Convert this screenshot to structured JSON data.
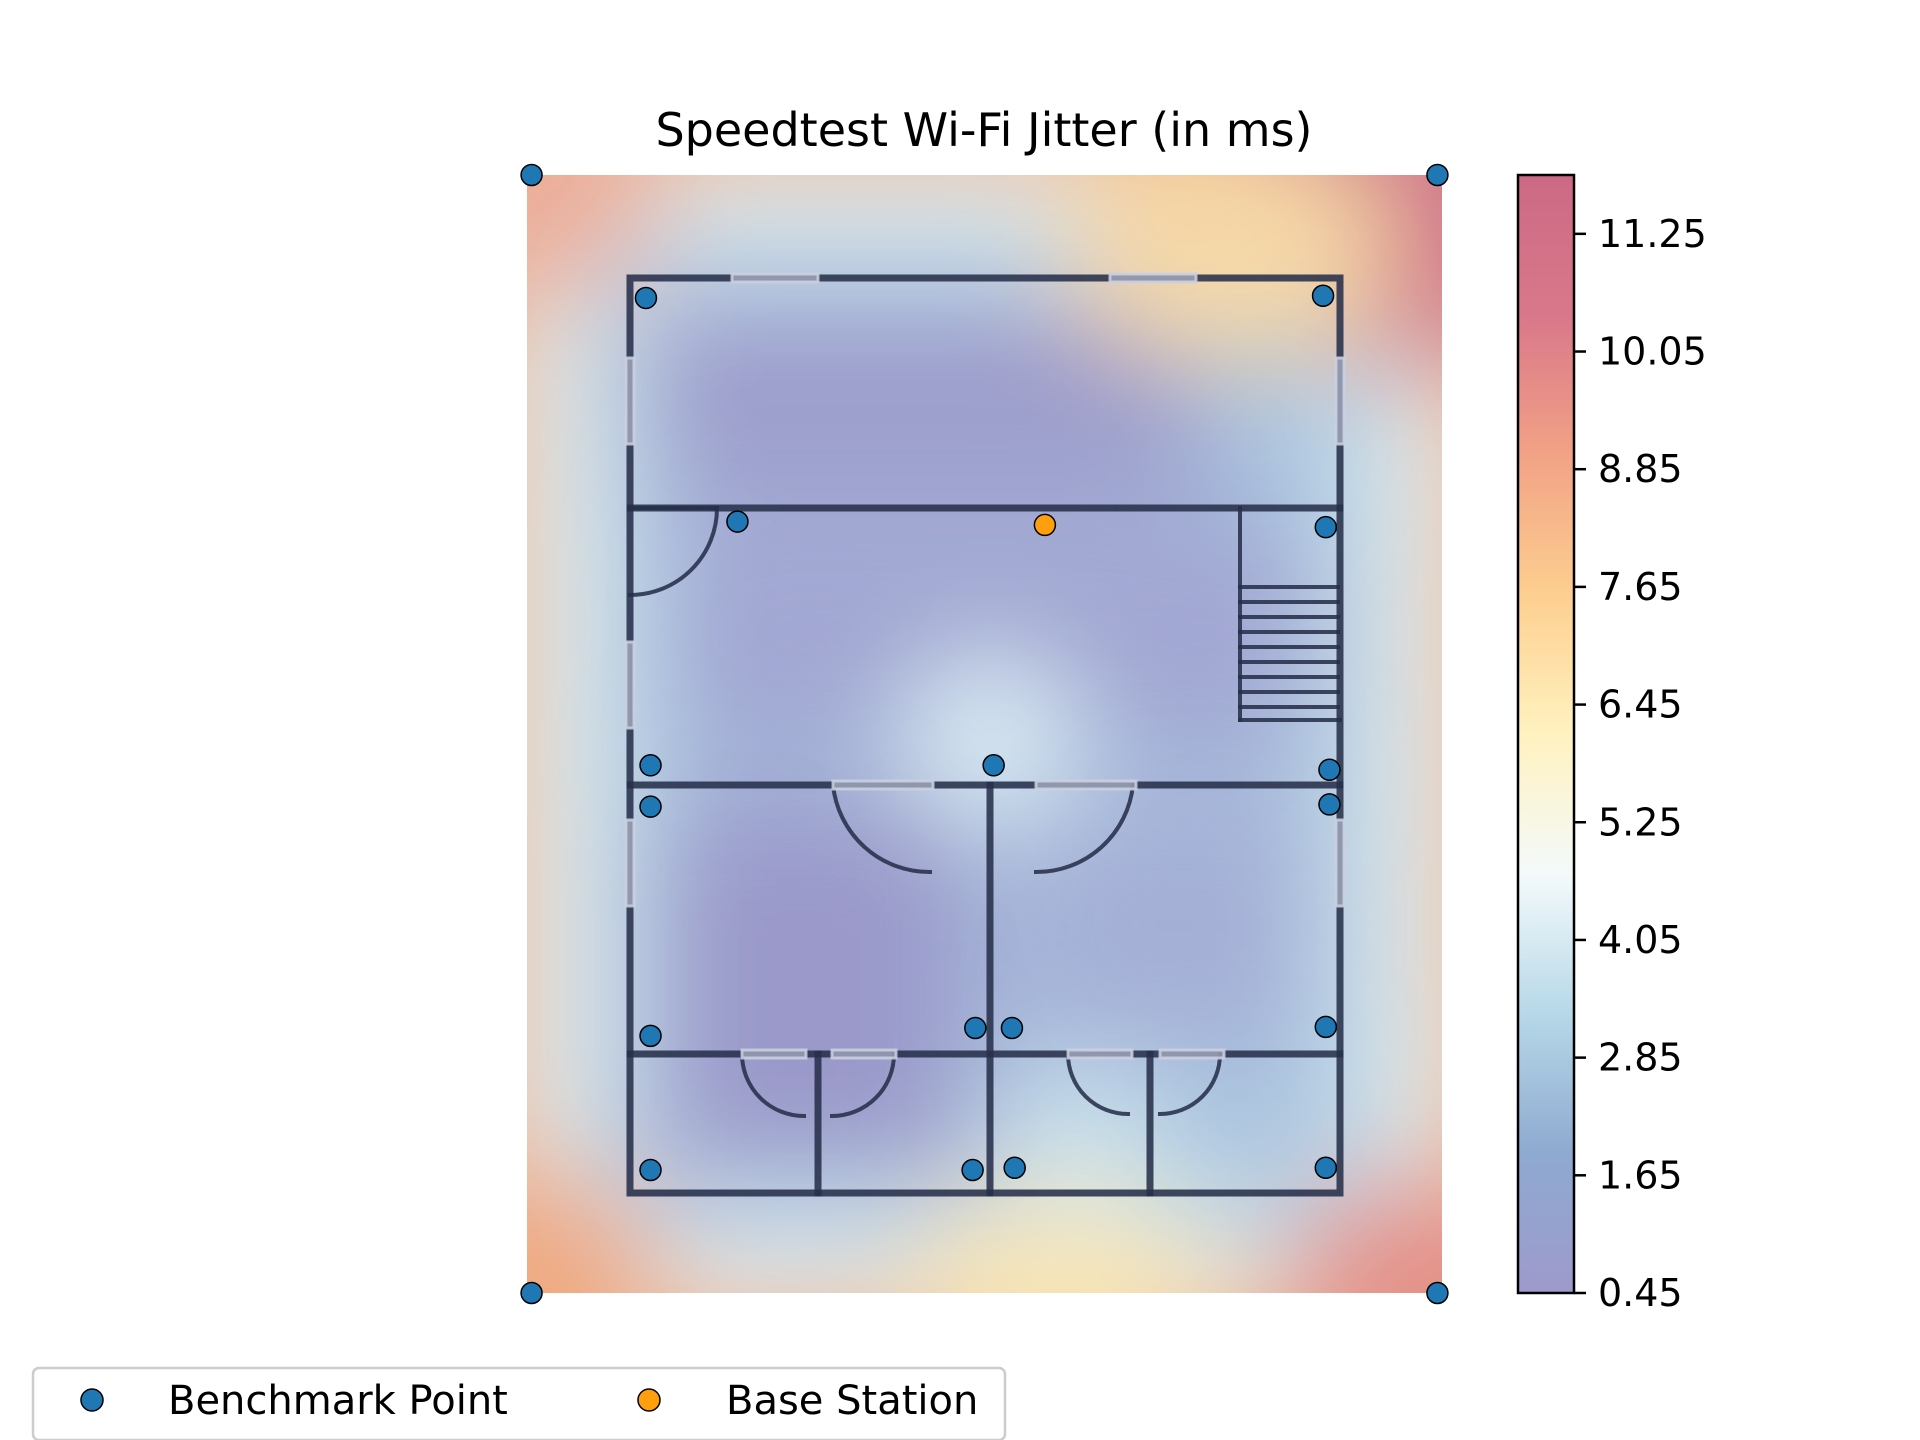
{
  "chart_data": {
    "type": "heatmap",
    "title": "Speedtest Wi-Fi Jitter (in ms)",
    "xlabel": "",
    "ylabel": "",
    "grid": false,
    "axes_visible": false,
    "background": "floor plan of a house overlaid with interpolated jitter heatmap",
    "value_range": [
      0.45,
      11.85
    ],
    "colorbar": {
      "ticks": [
        "11.25",
        "10.05",
        "8.85",
        "7.65",
        "6.45",
        "5.25",
        "4.05",
        "2.85",
        "1.65",
        "0.45"
      ],
      "tick_values": [
        11.25,
        10.05,
        8.85,
        7.65,
        6.45,
        5.25,
        4.05,
        2.85,
        1.65,
        0.45
      ],
      "colormap_stops": [
        "#9e9acb",
        "#8eaad0",
        "#b7d8e8",
        "#f4fafb",
        "#fff2c0",
        "#fdcf90",
        "#f2a286",
        "#d9778a",
        "#cc6a86"
      ],
      "opacity": 0.75
    },
    "series": [
      {
        "name": "Benchmark Point",
        "color": "#1f77b4",
        "unit": "fraction of plan width/height from top-left",
        "points": [
          {
            "x": 0.13,
            "y": 0.11
          },
          {
            "x": 0.87,
            "y": 0.108
          },
          {
            "x": 0.23,
            "y": 0.31
          },
          {
            "x": 0.873,
            "y": 0.315
          },
          {
            "x": 0.135,
            "y": 0.528
          },
          {
            "x": 0.51,
            "y": 0.528
          },
          {
            "x": 0.877,
            "y": 0.532
          },
          {
            "x": 0.135,
            "y": 0.565
          },
          {
            "x": 0.877,
            "y": 0.563
          },
          {
            "x": 0.135,
            "y": 0.77
          },
          {
            "x": 0.49,
            "y": 0.763
          },
          {
            "x": 0.53,
            "y": 0.763
          },
          {
            "x": 0.873,
            "y": 0.762
          },
          {
            "x": 0.135,
            "y": 0.89
          },
          {
            "x": 0.487,
            "y": 0.89
          },
          {
            "x": 0.533,
            "y": 0.888
          },
          {
            "x": 0.873,
            "y": 0.888
          },
          {
            "x": 0.005,
            "y": 0.0
          },
          {
            "x": 0.995,
            "y": 0.0
          },
          {
            "x": 0.005,
            "y": 1.0
          },
          {
            "x": 0.995,
            "y": 1.0
          }
        ]
      },
      {
        "name": "Base Station",
        "color": "#ff9f0e",
        "unit": "fraction of plan width/height from top-left",
        "points": [
          {
            "x": 0.566,
            "y": 0.313
          }
        ]
      }
    ],
    "legend": {
      "placement": "bottom-left",
      "entries": [
        "Benchmark Point",
        "Base Station"
      ]
    }
  }
}
